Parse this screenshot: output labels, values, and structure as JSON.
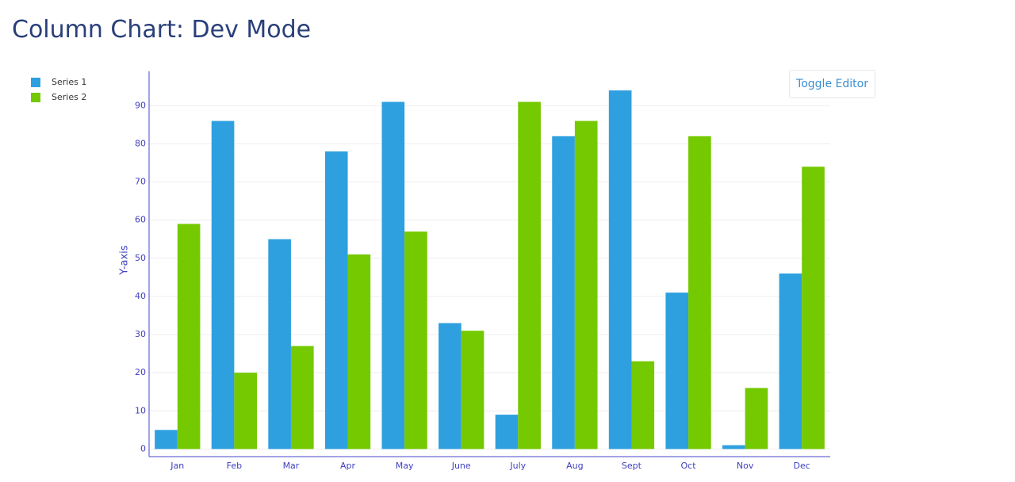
{
  "chart_data": {
    "type": "bar",
    "title": "Column Chart: Dev Mode",
    "y_label": "Y-axis",
    "categories": [
      "Jan",
      "Feb",
      "Mar",
      "Apr",
      "May",
      "June",
      "July",
      "Aug",
      "Sept",
      "Oct",
      "Nov",
      "Dec"
    ],
    "series": [
      {
        "name": "Series 1",
        "color": "#2ea0df",
        "values": [
          5,
          86,
          55,
          78,
          91,
          33,
          9,
          82,
          94,
          41,
          1,
          46
        ]
      },
      {
        "name": "Series 2",
        "color": "#74c900",
        "values": [
          59,
          20,
          27,
          51,
          57,
          31,
          91,
          86,
          23,
          82,
          16,
          74
        ]
      }
    ],
    "ylim": [
      -2,
      99
    ],
    "yticks": [
      0,
      10,
      20,
      30,
      40,
      50,
      60,
      70,
      80,
      90
    ],
    "grid": true,
    "legend": "top-left"
  },
  "button": "Toggle Editor"
}
